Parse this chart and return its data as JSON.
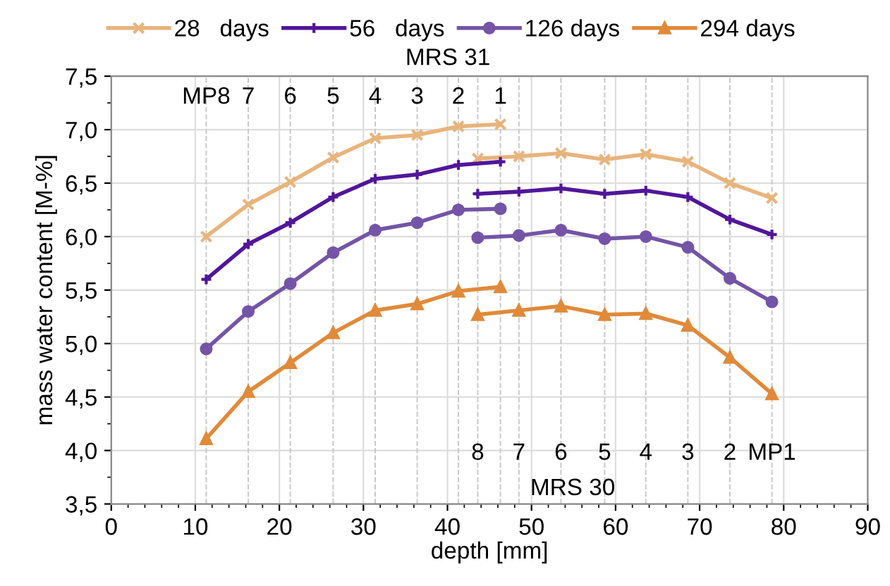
{
  "chart_data": {
    "type": "line",
    "xlabel": "depth [mm]",
    "ylabel": "mass water content [M-%]",
    "xlim": [
      0,
      90
    ],
    "xticks": [
      0,
      10,
      20,
      30,
      40,
      50,
      60,
      70,
      80,
      90
    ],
    "ylim": [
      3.5,
      7.5
    ],
    "yticks": [
      {
        "value": 3.5,
        "label": "3,5"
      },
      {
        "value": 4.0,
        "label": "4,0"
      },
      {
        "value": 4.5,
        "label": "4,5"
      },
      {
        "value": 5.0,
        "label": "5,0"
      },
      {
        "value": 5.5,
        "label": "5,5"
      },
      {
        "value": 6.0,
        "label": "6,0"
      },
      {
        "value": 6.5,
        "label": "6,5"
      },
      {
        "value": 7.0,
        "label": "7,0"
      },
      {
        "value": 7.5,
        "label": "7,5"
      }
    ],
    "grid": true,
    "legend": "top",
    "line_style": "solid",
    "series": [
      {
        "name": "28   days",
        "color": "#e8b47c",
        "marker": "cross",
        "x": [
          11.3,
          16.3,
          21.3,
          26.4,
          31.4,
          36.4,
          41.3,
          46.3
        ],
        "values": [
          6.0,
          6.3,
          6.51,
          6.74,
          6.92,
          6.95,
          7.03,
          7.05
        ]
      },
      {
        "color": "#e8b47c",
        "marker": "cross",
        "x": [
          43.6,
          48.5,
          53.5,
          58.7,
          63.6,
          68.6,
          73.6,
          78.6
        ],
        "values": [
          6.73,
          6.75,
          6.78,
          6.72,
          6.77,
          6.7,
          6.5,
          6.36
        ]
      },
      {
        "name": "56   days",
        "color": "#51169a",
        "marker": "plus",
        "x": [
          11.3,
          16.3,
          21.3,
          26.4,
          31.4,
          36.4,
          41.3,
          46.3
        ],
        "values": [
          5.6,
          5.93,
          6.13,
          6.37,
          6.54,
          6.58,
          6.67,
          6.7
        ]
      },
      {
        "color": "#51169a",
        "marker": "plus",
        "x": [
          43.6,
          48.5,
          53.5,
          58.7,
          63.6,
          68.6,
          73.6,
          78.6
        ],
        "values": [
          6.4,
          6.42,
          6.45,
          6.4,
          6.43,
          6.37,
          6.16,
          6.02
        ]
      },
      {
        "name": "126 days",
        "color": "#7454a6",
        "marker": "circle",
        "x": [
          11.3,
          16.3,
          21.3,
          26.4,
          31.4,
          36.4,
          41.3,
          46.3
        ],
        "values": [
          4.95,
          5.3,
          5.56,
          5.85,
          6.06,
          6.13,
          6.25,
          6.26
        ]
      },
      {
        "color": "#7454a6",
        "marker": "circle",
        "x": [
          43.6,
          48.5,
          53.5,
          58.7,
          63.6,
          68.6,
          73.6,
          78.6
        ],
        "values": [
          5.99,
          6.01,
          6.06,
          5.98,
          6.0,
          5.9,
          5.61,
          5.39
        ]
      },
      {
        "name": "294 days",
        "color": "#e08a3a",
        "marker": "triangle",
        "x": [
          11.3,
          16.3,
          21.3,
          26.4,
          31.4,
          36.4,
          41.3,
          46.3
        ],
        "values": [
          4.11,
          4.55,
          4.82,
          5.1,
          5.31,
          5.37,
          5.49,
          5.53
        ]
      },
      {
        "color": "#e08a3a",
        "marker": "triangle",
        "x": [
          43.6,
          48.5,
          53.5,
          58.7,
          63.6,
          68.6,
          73.6,
          78.6
        ],
        "values": [
          5.27,
          5.31,
          5.35,
          5.27,
          5.28,
          5.17,
          4.87,
          4.53
        ]
      }
    ],
    "ref_lines": [
      {
        "axis": "x",
        "value": 11.3,
        "color": "#c8c8c8",
        "line_style": "dashed"
      },
      {
        "axis": "x",
        "value": 16.3,
        "color": "#c8c8c8",
        "line_style": "dashed"
      },
      {
        "axis": "x",
        "value": 21.3,
        "color": "#c8c8c8",
        "line_style": "dashed"
      },
      {
        "axis": "x",
        "value": 26.4,
        "color": "#c8c8c8",
        "line_style": "dashed"
      },
      {
        "axis": "x",
        "value": 31.4,
        "color": "#c8c8c8",
        "line_style": "dashed"
      },
      {
        "axis": "x",
        "value": 36.4,
        "color": "#c8c8c8",
        "line_style": "dashed"
      },
      {
        "axis": "x",
        "value": 41.3,
        "color": "#c8c8c8",
        "line_style": "dashed"
      },
      {
        "axis": "x",
        "value": 46.3,
        "color": "#c8c8c8",
        "line_style": "dashed"
      },
      {
        "axis": "x",
        "value": 43.6,
        "color": "#c8c8c8",
        "line_style": "dashed"
      },
      {
        "axis": "x",
        "value": 48.5,
        "color": "#c8c8c8",
        "line_style": "dashed"
      },
      {
        "axis": "x",
        "value": 53.5,
        "color": "#c8c8c8",
        "line_style": "dashed"
      },
      {
        "axis": "x",
        "value": 58.7,
        "color": "#c8c8c8",
        "line_style": "dashed"
      },
      {
        "axis": "x",
        "value": 63.6,
        "color": "#c8c8c8",
        "line_style": "dashed"
      },
      {
        "axis": "x",
        "value": 68.6,
        "color": "#c8c8c8",
        "line_style": "dashed"
      },
      {
        "axis": "x",
        "value": 73.6,
        "color": "#c8c8c8",
        "line_style": "dashed"
      },
      {
        "axis": "x",
        "value": 78.6,
        "color": "#c8c8c8",
        "line_style": "dashed"
      }
    ],
    "annotations": [
      "MRS 31",
      {
        "text": "MP8",
        "x": 11.3,
        "y": 7.3
      },
      {
        "text": "7",
        "x": 16.3,
        "y": 7.3
      },
      {
        "text": "6",
        "x": 21.3,
        "y": 7.3
      },
      {
        "text": "5",
        "x": 26.4,
        "y": 7.3
      },
      {
        "text": "4",
        "x": 31.4,
        "y": 7.3
      },
      {
        "text": "3",
        "x": 36.4,
        "y": 7.3
      },
      {
        "text": "2",
        "x": 41.3,
        "y": 7.3
      },
      {
        "text": "1",
        "x": 46.3,
        "y": 7.3
      },
      {
        "text": "8",
        "x": 43.6,
        "y": 3.97
      },
      {
        "text": "7",
        "x": 48.5,
        "y": 3.97
      },
      {
        "text": "6",
        "x": 53.5,
        "y": 3.97
      },
      {
        "text": "5",
        "x": 58.7,
        "y": 3.97
      },
      {
        "text": "4",
        "x": 63.6,
        "y": 3.97
      },
      {
        "text": "3",
        "x": 68.6,
        "y": 3.97
      },
      {
        "text": "2",
        "x": 73.6,
        "y": 3.97
      },
      {
        "text": "MP1",
        "x": 78.6,
        "y": 3.97
      },
      "MRS 30"
    ]
  }
}
